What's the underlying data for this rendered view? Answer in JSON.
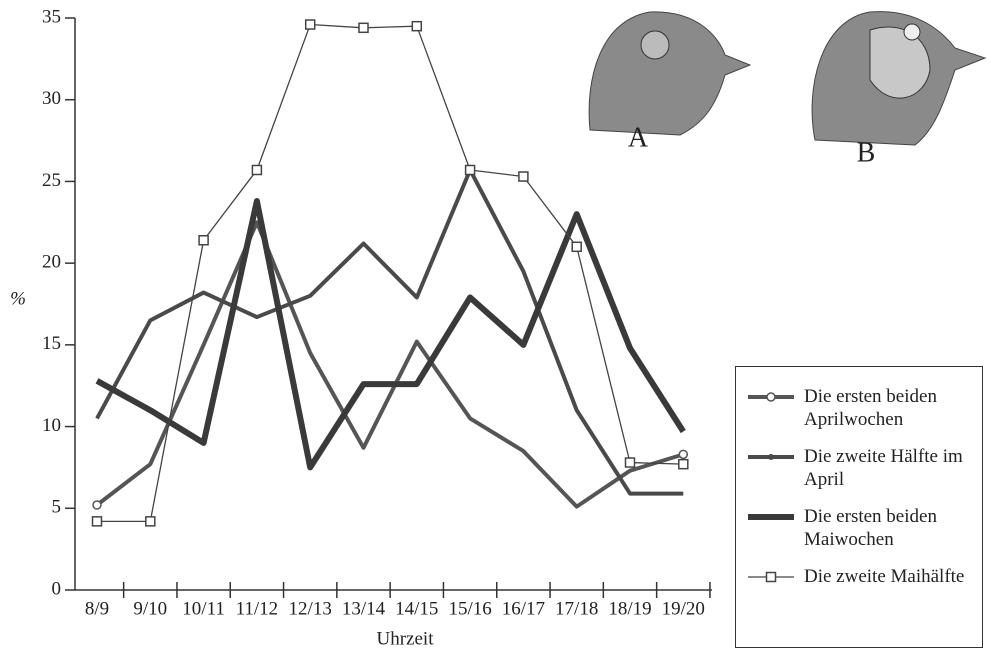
{
  "image_labels": [
    "A",
    "B"
  ],
  "chart_data": {
    "type": "line",
    "x_label": "Uhrzeit",
    "y_label": "%",
    "categories": [
      "8/9",
      "9/10",
      "10/11",
      "11/12",
      "12/13",
      "13/14",
      "14/15",
      "15/16",
      "16/17",
      "17/18",
      "18/19",
      "19/20"
    ],
    "ylim": [
      0,
      35
    ],
    "yticks": [
      0,
      5,
      10,
      15,
      20,
      25,
      30,
      35
    ],
    "series": [
      {
        "name": "Die ersten beiden Aprilwochen",
        "color": "#555555",
        "marker": "circle",
        "values": [
          5.2,
          7.7,
          15,
          22.5,
          14.5,
          8.7,
          15.2,
          10.5,
          8.5,
          5.1,
          7.3,
          8.3
        ]
      },
      {
        "name": "Die zweite Hälfte im April",
        "color": "#4a4a4a",
        "marker": "dot",
        "values": [
          10.5,
          16.5,
          18.2,
          16.7,
          18,
          21.2,
          17.9,
          25.7,
          19.5,
          11,
          5.9,
          5.9
        ]
      },
      {
        "name": "Die ersten beiden Maiwochen",
        "color": "#3a3a3a",
        "marker": "thick",
        "values": [
          12.8,
          11,
          9,
          23.8,
          7.5,
          12.6,
          12.6,
          17.9,
          15,
          23,
          14.8,
          9.7
        ]
      },
      {
        "name": "Die zweite Maihälfte",
        "color": "#444444",
        "marker": "square",
        "values": [
          4.2,
          4.2,
          21.4,
          25.7,
          34.6,
          34.4,
          34.5,
          25.7,
          25.3,
          21,
          7.8,
          7.7
        ]
      }
    ]
  }
}
